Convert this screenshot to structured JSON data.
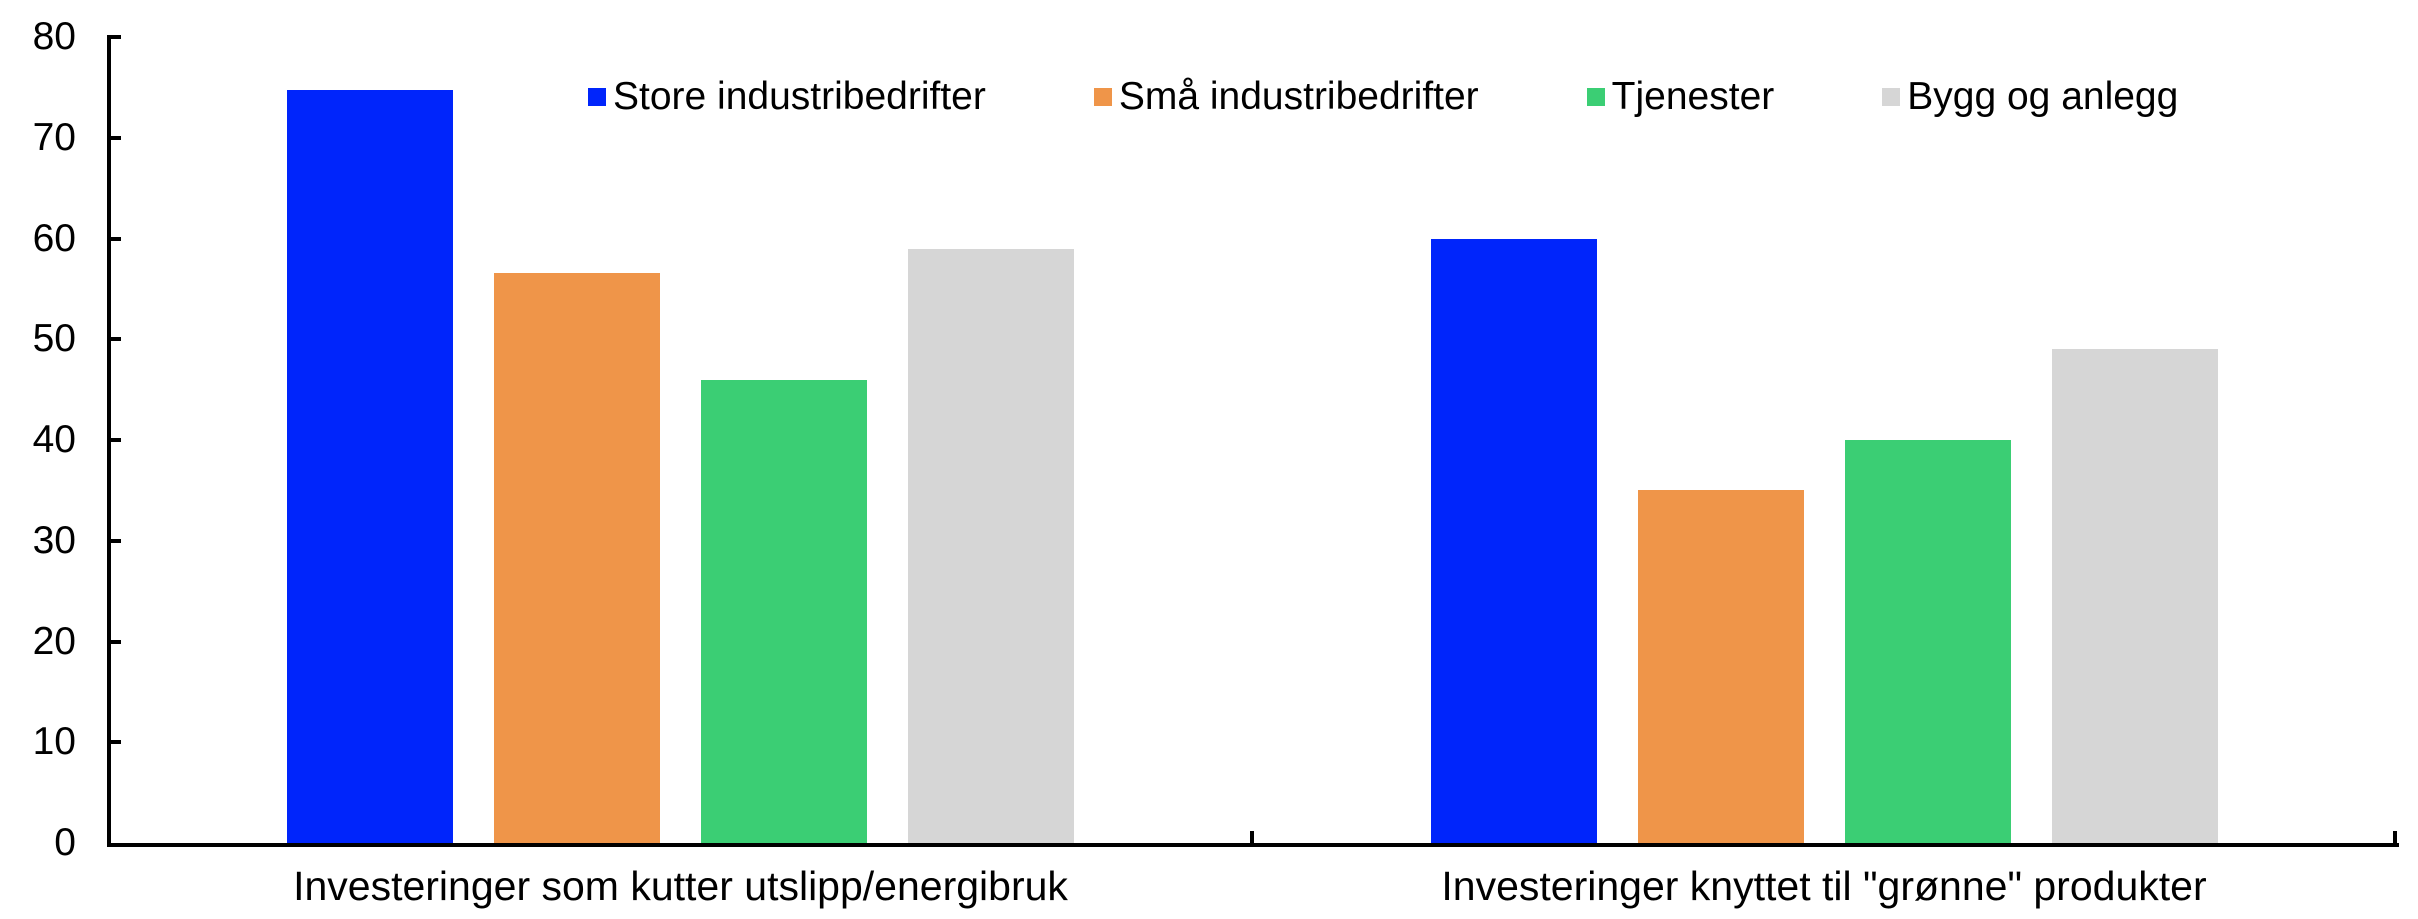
{
  "chart_data": {
    "type": "bar",
    "title": "",
    "xlabel": "",
    "ylabel": "",
    "categories": [
      "Investeringer som kutter utslipp/energibruk",
      "Investeringer knyttet til \"grønne\" produkter"
    ],
    "series": [
      {
        "name": "Store industribedrifter",
        "color": "#0025FB",
        "values": [
          74.7,
          60
        ]
      },
      {
        "name": "Små industribedrifter",
        "color": "#EF9549",
        "values": [
          56.6,
          35
        ]
      },
      {
        "name": "Tjenester",
        "color": "#3BCE74",
        "values": [
          46,
          40
        ]
      },
      {
        "name": "Bygg og anlegg",
        "color": "#D6D6D6",
        "values": [
          59,
          49
        ]
      }
    ],
    "ylim": [
      0,
      80
    ],
    "yticks": [
      0,
      10,
      20,
      30,
      40,
      50,
      60,
      70,
      80
    ],
    "grid": false,
    "legend_position": "top",
    "axis_color": "#000000",
    "text_color": "#000000"
  }
}
